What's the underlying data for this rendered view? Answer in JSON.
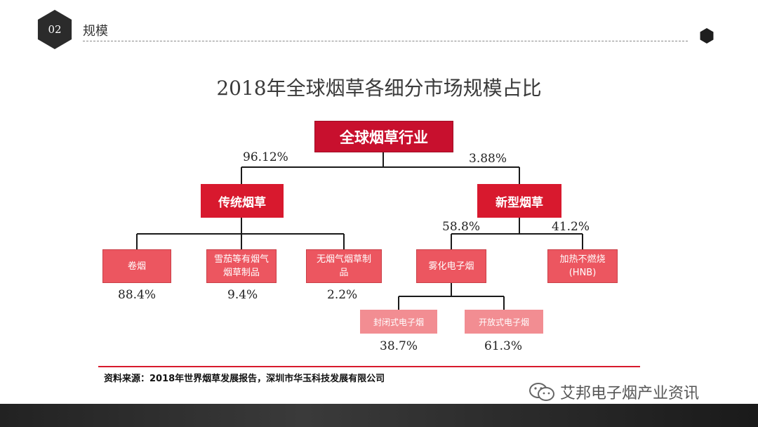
{
  "header": {
    "section_number": "02",
    "section_title": "规模"
  },
  "title": "2018年全球烟草各细分市场规模占比",
  "nodes": {
    "root": "全球烟草行业",
    "traditional": "传统烟草",
    "new_type": "新型烟草",
    "cigarettes": "卷烟",
    "cigars": "雪茄等有烟气烟草制品",
    "smokeless": "无烟气烟草制品",
    "vapor": "雾化电子烟",
    "hnb": "加热不燃烧(HNB)",
    "closed": "封闭式电子烟",
    "open": "开放式电子烟"
  },
  "shares": {
    "traditional": "96.12%",
    "new_type": "3.88%",
    "cigarettes": "88.4%",
    "cigars": "9.4%",
    "smokeless": "2.2%",
    "vapor": "58.8%",
    "hnb": "41.2%",
    "closed": "38.7%",
    "open": "61.3%"
  },
  "source": "资料来源：2018年世界烟草发展报告，深圳市华玉科技发展有限公司",
  "watermark": "艾邦电子烟产业资讯",
  "colors": {
    "root": "#c8102e",
    "level1": "#d8192e",
    "level2": "#ec5660",
    "level3": "#f28d92"
  }
}
